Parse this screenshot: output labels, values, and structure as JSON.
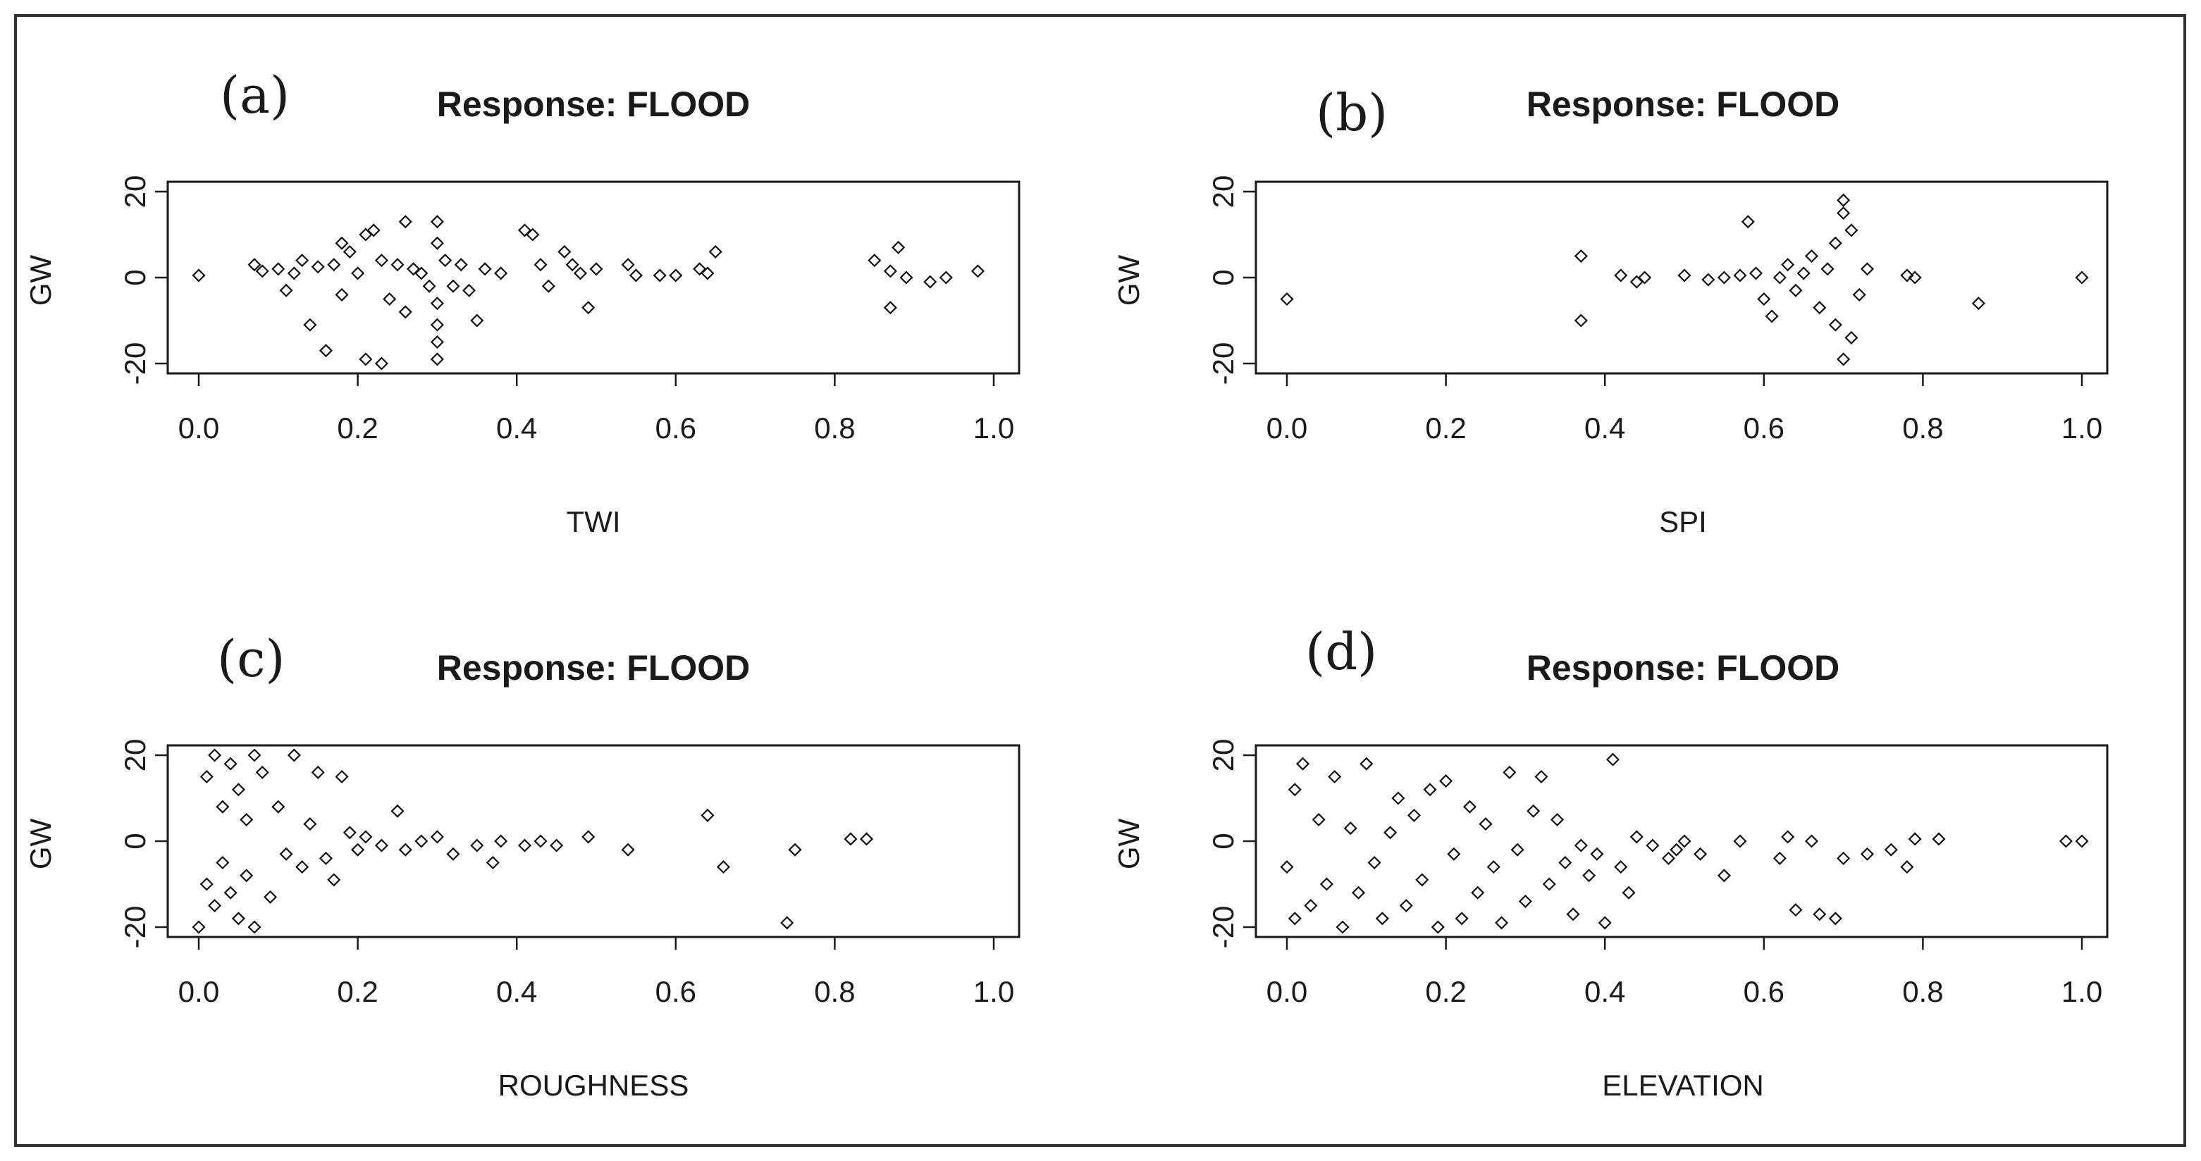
{
  "figure": {
    "colors": {
      "points": "#111111",
      "axes": "#1a1a1a",
      "frame": "#333333",
      "background": "#ffffff"
    }
  },
  "chart_data": [
    {
      "type": "scatter",
      "panel": "(a)",
      "title": "Response: FLOOD",
      "xlabel": "TWI",
      "ylabel": "GW",
      "xlim": [
        0.0,
        1.0
      ],
      "ylim": [
        -20,
        20
      ],
      "xticks": [
        "0.0",
        "0.2",
        "0.4",
        "0.6",
        "0.8",
        "1.0"
      ],
      "yticks": [
        "-20",
        "0",
        "20"
      ],
      "points": [
        [
          0.0,
          0.5
        ],
        [
          0.07,
          3
        ],
        [
          0.08,
          1.5
        ],
        [
          0.1,
          2
        ],
        [
          0.11,
          -3
        ],
        [
          0.12,
          1
        ],
        [
          0.13,
          4
        ],
        [
          0.14,
          -11
        ],
        [
          0.15,
          2.5
        ],
        [
          0.16,
          -17
        ],
        [
          0.17,
          3
        ],
        [
          0.18,
          8
        ],
        [
          0.18,
          -4
        ],
        [
          0.19,
          6
        ],
        [
          0.2,
          1
        ],
        [
          0.21,
          10
        ],
        [
          0.21,
          -19
        ],
        [
          0.22,
          11
        ],
        [
          0.23,
          -20
        ],
        [
          0.23,
          4
        ],
        [
          0.24,
          -5
        ],
        [
          0.25,
          3
        ],
        [
          0.26,
          13
        ],
        [
          0.26,
          -8
        ],
        [
          0.27,
          2
        ],
        [
          0.28,
          1
        ],
        [
          0.29,
          -2
        ],
        [
          0.3,
          13
        ],
        [
          0.3,
          -19
        ],
        [
          0.3,
          -15
        ],
        [
          0.3,
          -11
        ],
        [
          0.3,
          8
        ],
        [
          0.3,
          -6
        ],
        [
          0.31,
          4
        ],
        [
          0.32,
          -2
        ],
        [
          0.33,
          3
        ],
        [
          0.34,
          -3
        ],
        [
          0.35,
          -10
        ],
        [
          0.36,
          2
        ],
        [
          0.38,
          1
        ],
        [
          0.41,
          11
        ],
        [
          0.42,
          10
        ],
        [
          0.43,
          3
        ],
        [
          0.44,
          -2
        ],
        [
          0.46,
          6
        ],
        [
          0.47,
          3
        ],
        [
          0.48,
          1
        ],
        [
          0.49,
          -7
        ],
        [
          0.5,
          2
        ],
        [
          0.54,
          3
        ],
        [
          0.55,
          0.5
        ],
        [
          0.58,
          0.5
        ],
        [
          0.6,
          0.5
        ],
        [
          0.63,
          2
        ],
        [
          0.64,
          1
        ],
        [
          0.65,
          6
        ],
        [
          0.85,
          4
        ],
        [
          0.87,
          -7
        ],
        [
          0.87,
          1.5
        ],
        [
          0.88,
          7
        ],
        [
          0.89,
          0
        ],
        [
          0.92,
          -1
        ],
        [
          0.94,
          0
        ],
        [
          0.98,
          1.5
        ]
      ]
    },
    {
      "type": "scatter",
      "panel": "(b)",
      "title": "Response: FLOOD",
      "xlabel": "SPI",
      "ylabel": "GW",
      "xlim": [
        0.0,
        1.0
      ],
      "ylim": [
        -20,
        20
      ],
      "xticks": [
        "0.0",
        "0.2",
        "0.4",
        "0.6",
        "0.8",
        "1.0"
      ],
      "yticks": [
        "-20",
        "0",
        "20"
      ],
      "points": [
        [
          0.0,
          -5
        ],
        [
          0.37,
          5
        ],
        [
          0.37,
          -10
        ],
        [
          0.42,
          0.5
        ],
        [
          0.44,
          -1
        ],
        [
          0.45,
          0
        ],
        [
          0.5,
          0.5
        ],
        [
          0.53,
          -0.5
        ],
        [
          0.55,
          0
        ],
        [
          0.57,
          0.5
        ],
        [
          0.58,
          13
        ],
        [
          0.59,
          1
        ],
        [
          0.6,
          -5
        ],
        [
          0.61,
          -9
        ],
        [
          0.62,
          0
        ],
        [
          0.63,
          3
        ],
        [
          0.64,
          -3
        ],
        [
          0.65,
          1
        ],
        [
          0.66,
          5
        ],
        [
          0.67,
          -7
        ],
        [
          0.68,
          2
        ],
        [
          0.69,
          -11
        ],
        [
          0.69,
          8
        ],
        [
          0.7,
          18
        ],
        [
          0.7,
          -19
        ],
        [
          0.7,
          15
        ],
        [
          0.71,
          -14
        ],
        [
          0.71,
          11
        ],
        [
          0.72,
          -4
        ],
        [
          0.73,
          2
        ],
        [
          0.78,
          0.5
        ],
        [
          0.79,
          0
        ],
        [
          0.87,
          -6
        ],
        [
          1.0,
          0
        ]
      ]
    },
    {
      "type": "scatter",
      "panel": "(c)",
      "title": "Response: FLOOD",
      "xlabel": "ROUGHNESS",
      "ylabel": "GW",
      "xlim": [
        0.0,
        1.0
      ],
      "ylim": [
        -20,
        20
      ],
      "xticks": [
        "0.0",
        "0.2",
        "0.4",
        "0.6",
        "0.8",
        "1.0"
      ],
      "yticks": [
        "-20",
        "0",
        "20"
      ],
      "points": [
        [
          0.0,
          -20
        ],
        [
          0.01,
          15
        ],
        [
          0.01,
          -10
        ],
        [
          0.02,
          20
        ],
        [
          0.02,
          -15
        ],
        [
          0.03,
          8
        ],
        [
          0.03,
          -5
        ],
        [
          0.04,
          18
        ],
        [
          0.04,
          -12
        ],
        [
          0.05,
          12
        ],
        [
          0.05,
          -18
        ],
        [
          0.06,
          5
        ],
        [
          0.06,
          -8
        ],
        [
          0.07,
          20
        ],
        [
          0.07,
          -20
        ],
        [
          0.08,
          16
        ],
        [
          0.09,
          -13
        ],
        [
          0.1,
          8
        ],
        [
          0.11,
          -3
        ],
        [
          0.12,
          20
        ],
        [
          0.13,
          -6
        ],
        [
          0.14,
          4
        ],
        [
          0.15,
          16
        ],
        [
          0.16,
          -4
        ],
        [
          0.17,
          -9
        ],
        [
          0.18,
          15
        ],
        [
          0.19,
          2
        ],
        [
          0.2,
          -2
        ],
        [
          0.21,
          1
        ],
        [
          0.23,
          -1
        ],
        [
          0.25,
          7
        ],
        [
          0.26,
          -2
        ],
        [
          0.28,
          0
        ],
        [
          0.3,
          1
        ],
        [
          0.32,
          -3
        ],
        [
          0.35,
          -1
        ],
        [
          0.37,
          -5
        ],
        [
          0.38,
          0
        ],
        [
          0.41,
          -1
        ],
        [
          0.43,
          0
        ],
        [
          0.45,
          -1
        ],
        [
          0.49,
          1
        ],
        [
          0.54,
          -2
        ],
        [
          0.64,
          6
        ],
        [
          0.66,
          -6
        ],
        [
          0.74,
          -19
        ],
        [
          0.75,
          -2
        ],
        [
          0.82,
          0.5
        ],
        [
          0.84,
          0.5
        ]
      ]
    },
    {
      "type": "scatter",
      "panel": "(d)",
      "title": "Response: FLOOD",
      "xlabel": "ELEVATION",
      "ylabel": "GW",
      "xlim": [
        0.0,
        1.0
      ],
      "ylim": [
        -20,
        20
      ],
      "xticks": [
        "0.0",
        "0.2",
        "0.4",
        "0.6",
        "0.8",
        "1.0"
      ],
      "yticks": [
        "-20",
        "0",
        "20"
      ],
      "points": [
        [
          0.0,
          -6
        ],
        [
          0.01,
          12
        ],
        [
          0.01,
          -18
        ],
        [
          0.02,
          18
        ],
        [
          0.03,
          -15
        ],
        [
          0.04,
          5
        ],
        [
          0.05,
          -10
        ],
        [
          0.06,
          15
        ],
        [
          0.07,
          -20
        ],
        [
          0.08,
          3
        ],
        [
          0.09,
          -12
        ],
        [
          0.1,
          18
        ],
        [
          0.11,
          -5
        ],
        [
          0.12,
          -18
        ],
        [
          0.13,
          2
        ],
        [
          0.14,
          10
        ],
        [
          0.15,
          -15
        ],
        [
          0.16,
          6
        ],
        [
          0.17,
          -9
        ],
        [
          0.18,
          12
        ],
        [
          0.19,
          -20
        ],
        [
          0.2,
          14
        ],
        [
          0.21,
          -3
        ],
        [
          0.22,
          -18
        ],
        [
          0.23,
          8
        ],
        [
          0.24,
          -12
        ],
        [
          0.25,
          4
        ],
        [
          0.26,
          -6
        ],
        [
          0.27,
          -19
        ],
        [
          0.28,
          16
        ],
        [
          0.29,
          -2
        ],
        [
          0.3,
          -14
        ],
        [
          0.31,
          7
        ],
        [
          0.32,
          15
        ],
        [
          0.33,
          -10
        ],
        [
          0.34,
          5
        ],
        [
          0.35,
          -5
        ],
        [
          0.36,
          -17
        ],
        [
          0.37,
          -1
        ],
        [
          0.38,
          -8
        ],
        [
          0.39,
          -3
        ],
        [
          0.4,
          -19
        ],
        [
          0.41,
          19
        ],
        [
          0.42,
          -6
        ],
        [
          0.43,
          -12
        ],
        [
          0.44,
          1
        ],
        [
          0.46,
          -1
        ],
        [
          0.48,
          -4
        ],
        [
          0.49,
          -2
        ],
        [
          0.5,
          0
        ],
        [
          0.52,
          -3
        ],
        [
          0.55,
          -8
        ],
        [
          0.57,
          0
        ],
        [
          0.62,
          -4
        ],
        [
          0.63,
          1
        ],
        [
          0.64,
          -16
        ],
        [
          0.66,
          0
        ],
        [
          0.67,
          -17
        ],
        [
          0.69,
          -18
        ],
        [
          0.7,
          -4
        ],
        [
          0.73,
          -3
        ],
        [
          0.76,
          -2
        ],
        [
          0.78,
          -6
        ],
        [
          0.79,
          0.5
        ],
        [
          0.82,
          0.5
        ],
        [
          0.98,
          0
        ],
        [
          1.0,
          0
        ]
      ]
    }
  ]
}
